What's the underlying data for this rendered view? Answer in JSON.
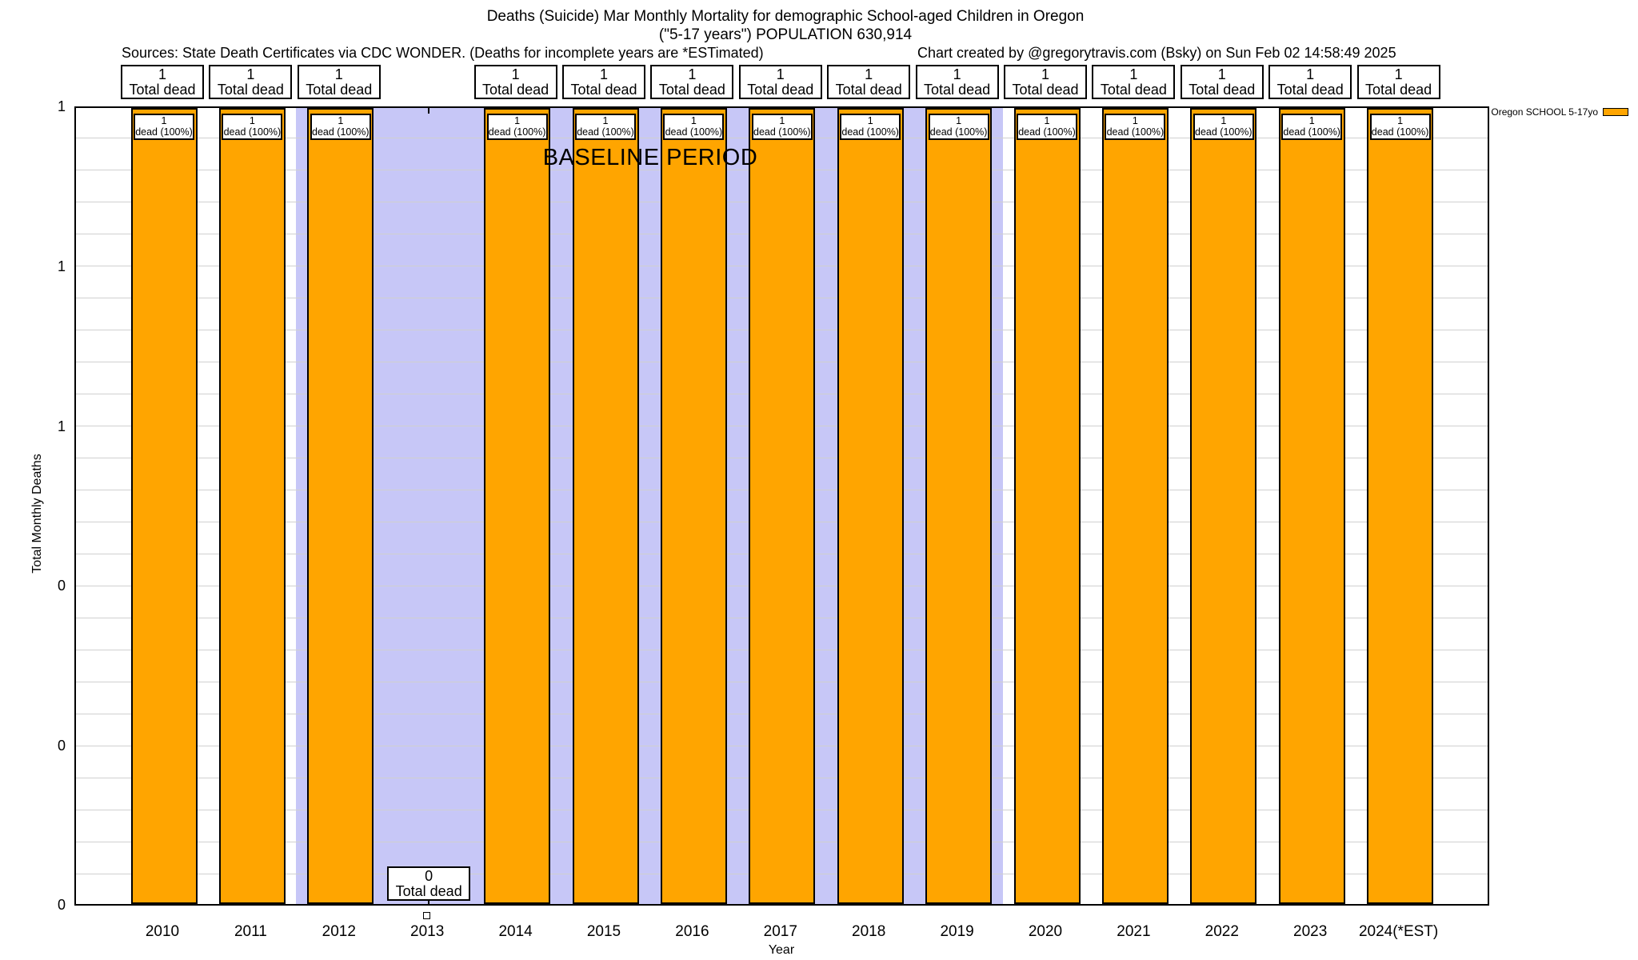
{
  "title": {
    "line1": "Deaths (Suicide) Mar Monthly Mortality for demographic School-aged Children in Oregon",
    "line2": "(\"5-17 years\") POPULATION 630,914"
  },
  "header": {
    "sources": "Sources: State Death Certificates via CDC WONDER. (Deaths for incomplete years are *ESTimated)",
    "credit": "Chart created by @gregorytravis.com (Bsky) on Sun Feb 02 14:58:49 2025"
  },
  "legend": {
    "label": "Oregon SCHOOL 5-17yo",
    "swatch_color": "#FFA500"
  },
  "axes": {
    "y_title": "Total Monthly Deaths",
    "x_title": "Year",
    "y_tick_labels": [
      "1",
      "1",
      "1",
      "0",
      "0",
      "0"
    ]
  },
  "baseline": {
    "label": "BASELINE PERIOD",
    "color": "#C7C7F7"
  },
  "columns": [
    {
      "year": "2010",
      "value": 1,
      "total_line1": "1",
      "total_line2": "Total dead",
      "bar_line1": "1",
      "bar_line2": "dead (100%)"
    },
    {
      "year": "2011",
      "value": 1,
      "total_line1": "1",
      "total_line2": "Total dead",
      "bar_line1": "1",
      "bar_line2": "dead (100%)"
    },
    {
      "year": "2012",
      "value": 1,
      "total_line1": "1",
      "total_line2": "Total dead",
      "bar_line1": "1",
      "bar_line2": "dead (100%)"
    },
    {
      "year": "2013",
      "value": 0,
      "total_line1": "0",
      "total_line2": "Total dead"
    },
    {
      "year": "2014",
      "value": 1,
      "total_line1": "1",
      "total_line2": "Total dead",
      "bar_line1": "1",
      "bar_line2": "dead (100%)"
    },
    {
      "year": "2015",
      "value": 1,
      "total_line1": "1",
      "total_line2": "Total dead",
      "bar_line1": "1",
      "bar_line2": "dead (100%)"
    },
    {
      "year": "2016",
      "value": 1,
      "total_line1": "1",
      "total_line2": "Total dead",
      "bar_line1": "1",
      "bar_line2": "dead (100%)"
    },
    {
      "year": "2017",
      "value": 1,
      "total_line1": "1",
      "total_line2": "Total dead",
      "bar_line1": "1",
      "bar_line2": "dead (100%)"
    },
    {
      "year": "2018",
      "value": 1,
      "total_line1": "1",
      "total_line2": "Total dead",
      "bar_line1": "1",
      "bar_line2": "dead (100%)"
    },
    {
      "year": "2019",
      "value": 1,
      "total_line1": "1",
      "total_line2": "Total dead",
      "bar_line1": "1",
      "bar_line2": "dead (100%)"
    },
    {
      "year": "2020",
      "value": 1,
      "total_line1": "1",
      "total_line2": "Total dead",
      "bar_line1": "1",
      "bar_line2": "dead (100%)"
    },
    {
      "year": "2021",
      "value": 1,
      "total_line1": "1",
      "total_line2": "Total dead",
      "bar_line1": "1",
      "bar_line2": "dead (100%)"
    },
    {
      "year": "2022",
      "value": 1,
      "total_line1": "1",
      "total_line2": "Total dead",
      "bar_line1": "1",
      "bar_line2": "dead (100%)"
    },
    {
      "year": "2023",
      "value": 1,
      "total_line1": "1",
      "total_line2": "Total dead",
      "bar_line1": "1",
      "bar_line2": "dead (100%)"
    },
    {
      "year": "2024(*EST)",
      "value": 1,
      "total_line1": "1",
      "total_line2": "Total dead",
      "bar_line1": "1",
      "bar_line2": "dead (100%)"
    }
  ],
  "chart_data": {
    "type": "bar",
    "title": "Deaths (Suicide) Mar Monthly Mortality for demographic School-aged Children in Oregon (\"5-17 years\") POPULATION 630,914",
    "xlabel": "Year",
    "ylabel": "Total Monthly Deaths",
    "ylim": [
      0,
      1
    ],
    "y_tick_values": [
      1.0,
      0.8,
      0.6,
      0.4,
      0.2,
      0.0
    ],
    "y_tick_labels_rounded": [
      "1",
      "1",
      "1",
      "0",
      "0",
      "0"
    ],
    "categories": [
      "2010",
      "2011",
      "2012",
      "2013",
      "2014",
      "2015",
      "2016",
      "2017",
      "2018",
      "2019",
      "2020",
      "2021",
      "2022",
      "2023",
      "2024(*EST)"
    ],
    "series": [
      {
        "name": "Oregon SCHOOL 5-17yo",
        "color": "#FFA500",
        "values": [
          1,
          1,
          1,
          0,
          1,
          1,
          1,
          1,
          1,
          1,
          1,
          1,
          1,
          1,
          1
        ]
      }
    ],
    "per_bar_annotations": [
      "1 Total dead / 1 dead (100%)",
      "1 Total dead / 1 dead (100%)",
      "1 Total dead / 1 dead (100%)",
      "0 Total dead",
      "1 Total dead / 1 dead (100%)",
      "1 Total dead / 1 dead (100%)",
      "1 Total dead / 1 dead (100%)",
      "1 Total dead / 1 dead (100%)",
      "1 Total dead / 1 dead (100%)",
      "1 Total dead / 1 dead (100%)",
      "1 Total dead / 1 dead (100%)",
      "1 Total dead / 1 dead (100%)",
      "1 Total dead / 1 dead (100%)",
      "1 Total dead / 1 dead (100%)",
      "1 Total dead / 1 dead (100%)"
    ],
    "baseline_region": {
      "from_category": "2012",
      "to_category": "2019",
      "color": "#C7C7F7",
      "label": "BASELINE PERIOD"
    },
    "grid": "minor horizontal gridlines, 5 per major tick",
    "legend_position": "outside top-right"
  }
}
